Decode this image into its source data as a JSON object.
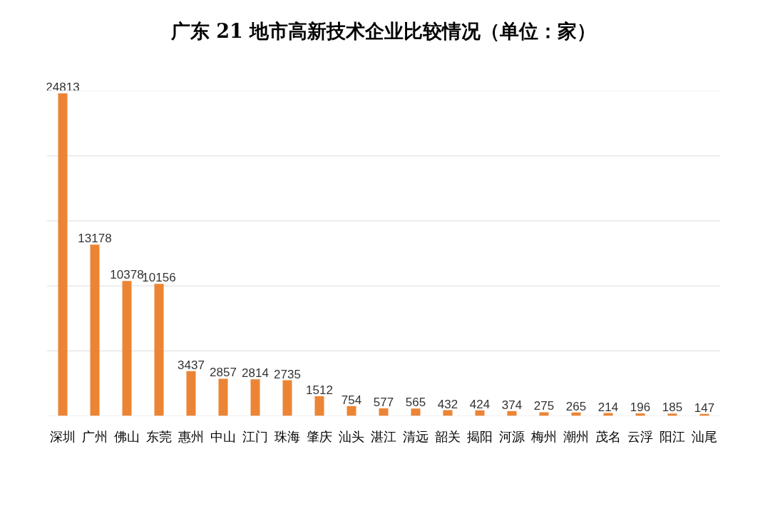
{
  "chart_data": {
    "type": "bar",
    "title": "广东 21 地市高新技术企业比较情况（单位：家）",
    "categories": [
      "深圳",
      "广州",
      "佛山",
      "东莞",
      "惠州",
      "中山",
      "江门",
      "珠海",
      "肇庆",
      "汕头",
      "湛江",
      "清远",
      "韶关",
      "揭阳",
      "河源",
      "梅州",
      "潮州",
      "茂名",
      "云浮",
      "阳江",
      "汕尾"
    ],
    "values": [
      24813,
      13178,
      10378,
      10156,
      3437,
      2857,
      2814,
      2735,
      1512,
      754,
      577,
      565,
      432,
      424,
      374,
      275,
      265,
      214,
      196,
      185,
      147
    ],
    "color": "#eb8535",
    "ylim": [
      0,
      25000
    ],
    "yticks": [
      {
        "value": 0,
        "label": null
      },
      {
        "value": 5000,
        "label": null
      },
      {
        "value": 10000,
        "label": null
      },
      {
        "value": 15000,
        "label": null
      },
      {
        "value": 20000,
        "label": null
      },
      {
        "value": 25000,
        "label": null
      }
    ],
    "tick_labels": "x",
    "grid": "y",
    "data_labels": true
  }
}
